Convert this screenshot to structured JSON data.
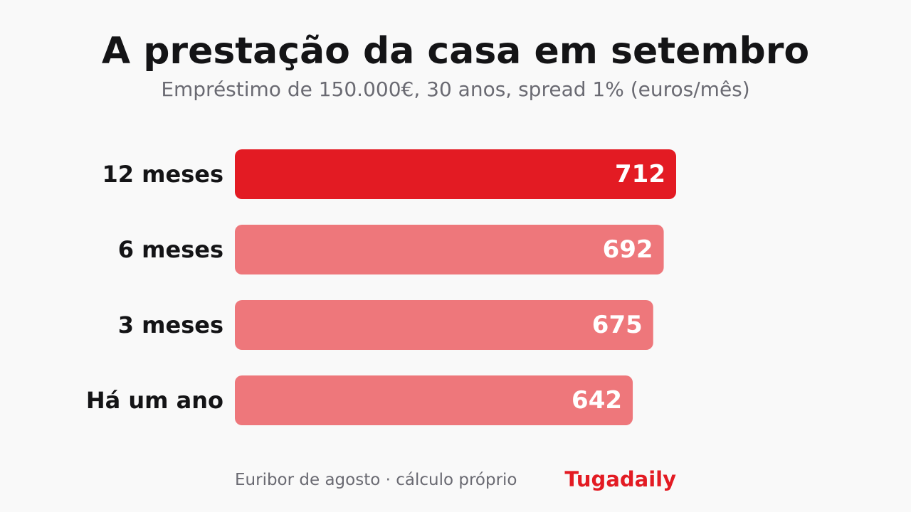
{
  "header": {
    "title": "A prestação da casa em setembro",
    "subtitle": "Empréstimo de 150.000€, 30 anos, spread 1% (euros/mês)"
  },
  "footer": {
    "source": "Euribor de agosto · cálculo próprio",
    "brand": "Tugadaily"
  },
  "colors": {
    "highlight": "#e31b23",
    "bar": "#ee777b",
    "background": "#f9f9f9",
    "title": "#141416",
    "muted": "#6a6a72"
  },
  "chart_data": {
    "type": "bar",
    "orientation": "horizontal",
    "categories": [
      "12 meses",
      "6 meses",
      "3 meses",
      "Há um ano"
    ],
    "values": [
      712,
      692,
      675,
      642
    ],
    "value_labels": [
      "712",
      "692",
      "675",
      "642"
    ],
    "highlighted_category": "12 meses",
    "xlim": [
      0,
      712
    ],
    "grid": false,
    "legend": "none"
  }
}
